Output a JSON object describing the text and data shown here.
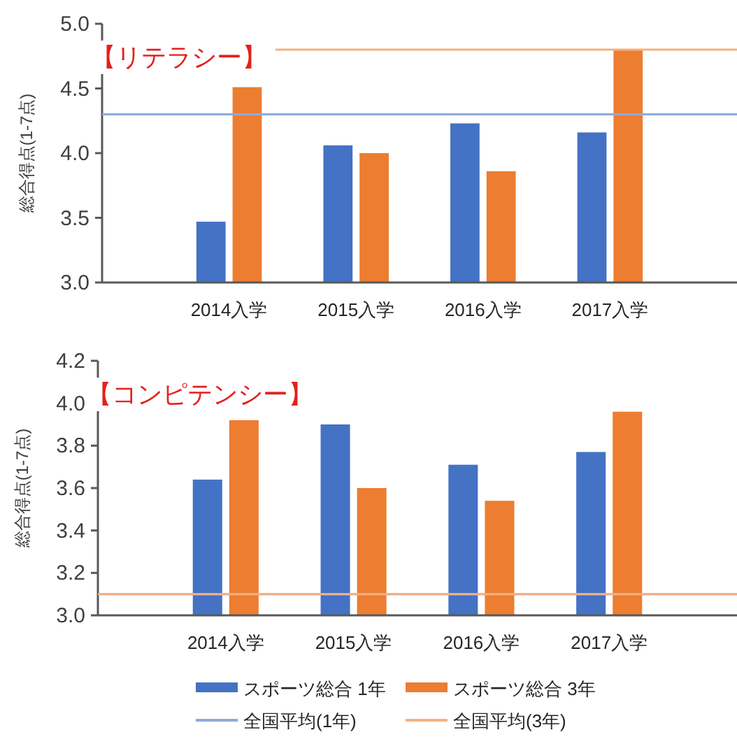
{
  "chart_data": [
    {
      "type": "bar",
      "ylabel": "総合得点(1-7点)",
      "annotations": [
        "【リテラシー】"
      ],
      "categories": [
        "2014入学",
        "2015入学",
        "2016入学",
        "2017入学"
      ],
      "series": [
        {
          "color": "#4472c4",
          "values": [
            3.47,
            4.06,
            4.23,
            4.16
          ]
        },
        {
          "color": "#ed7d31",
          "values": [
            4.51,
            4.0,
            3.86,
            4.8
          ]
        }
      ],
      "ylim": [
        3,
        5
      ],
      "yticks": [
        {
          "value": 3,
          "label": "3.0"
        },
        3.5,
        {
          "value": 4,
          "label": "4.0"
        },
        4.5,
        {
          "value": 5,
          "label": "5.0"
        }
      ],
      "ref_lines": [
        {
          "axis": "y",
          "value": 4.3,
          "color": "#8faadc"
        },
        {
          "axis": "y",
          "value": 4.8,
          "color": "#f4b183"
        }
      ],
      "legend": false
    },
    {
      "type": "bar",
      "ylabel": "総合得点(1-7点)",
      "annotations": [
        "【コンピテンシー】"
      ],
      "categories": [
        "2014入学",
        "2015入学",
        "2016入学",
        "2017入学"
      ],
      "series": [
        {
          "name": "スポーツ総合 1年",
          "color": "#4472c4",
          "values": [
            3.64,
            3.9,
            3.71,
            3.77
          ]
        },
        {
          "name": "スポーツ総合 3年",
          "color": "#ed7d31",
          "values": [
            3.92,
            3.6,
            3.54,
            3.96
          ]
        }
      ],
      "ylim": [
        3,
        4.2
      ],
      "yticks": [
        {
          "value": 3,
          "label": "3.0"
        },
        3.2,
        3.4,
        3.6,
        3.8,
        {
          "value": 4,
          "label": "4.0"
        },
        4.2
      ],
      "ref_lines": [
        {
          "axis": "y",
          "value": 3.1,
          "color": "#8faadc",
          "label": "全国平均(1年)"
        },
        {
          "axis": "y",
          "value": 3.1,
          "color": "#f4b183",
          "label": "全国平均(3年)"
        }
      ],
      "legend": "bottom"
    }
  ]
}
